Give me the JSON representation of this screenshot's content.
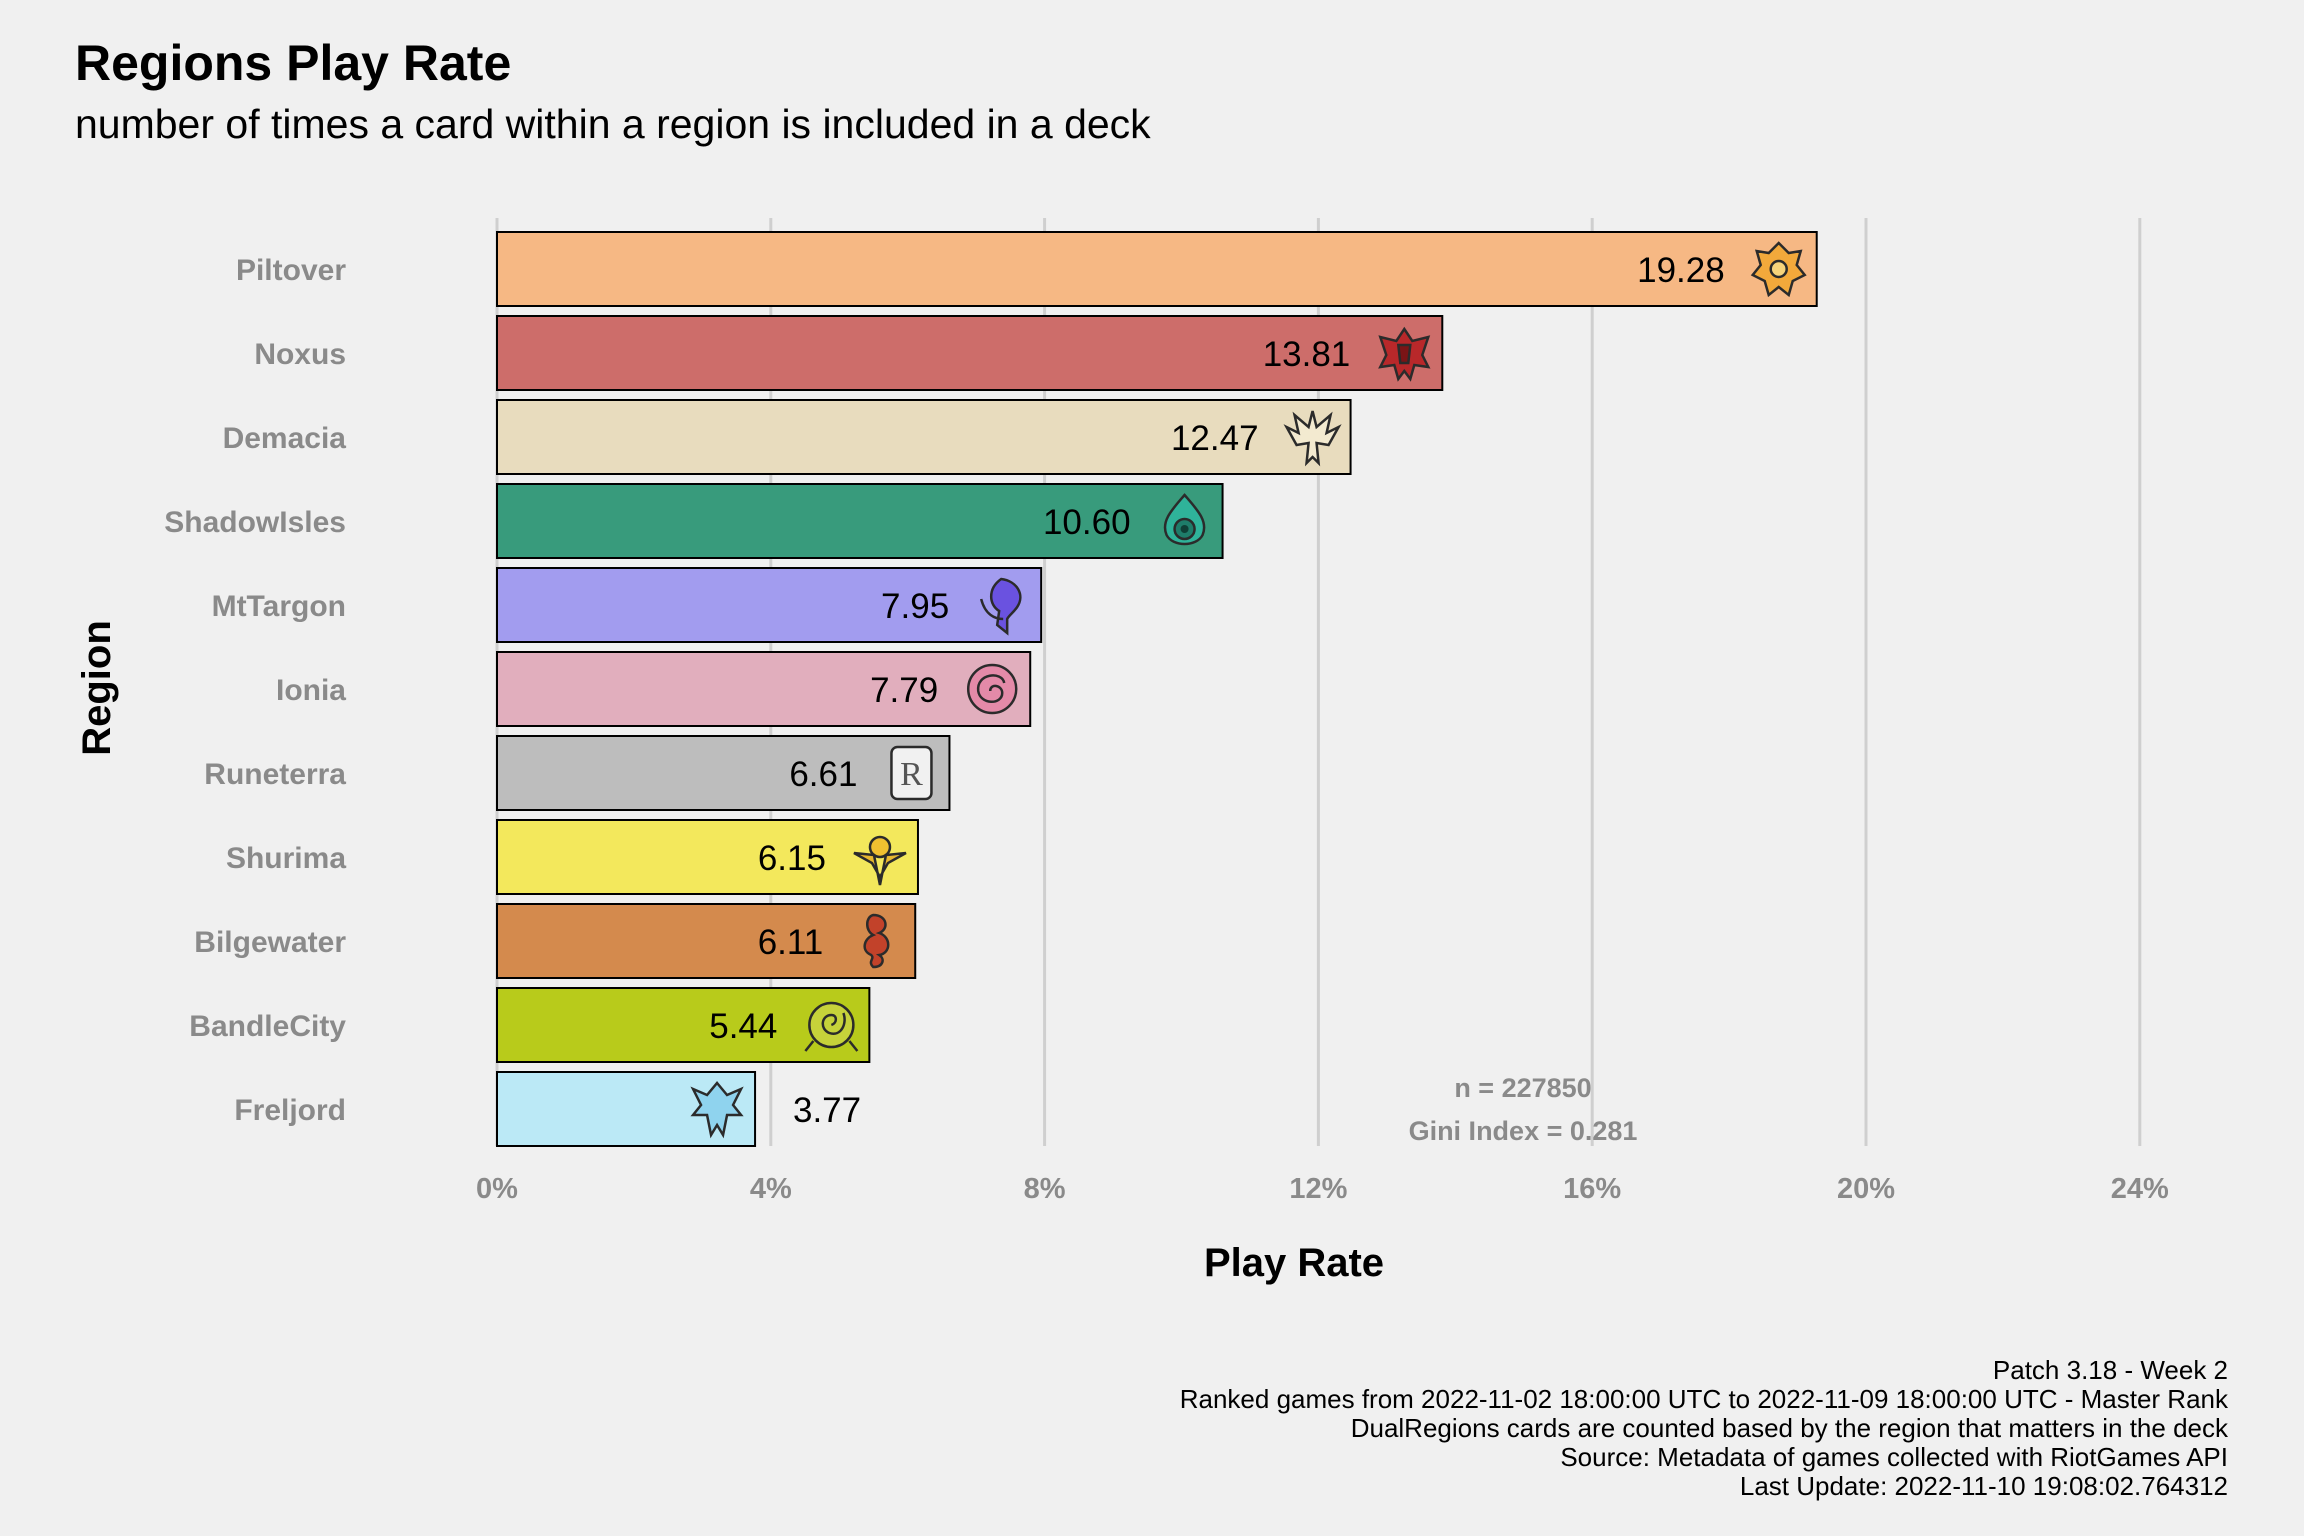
{
  "chart_data": {
    "type": "bar",
    "orientation": "horizontal",
    "title": "Regions Play Rate",
    "subtitle": "number of times a card within a region is included in a deck",
    "xlabel": "Play Rate",
    "ylabel": "Region",
    "xlim": [
      0,
      25
    ],
    "x_ticks": [
      "0%",
      "4%",
      "8%",
      "12%",
      "16%",
      "20%",
      "24%"
    ],
    "grid": "vertical",
    "categories": [
      "Piltover",
      "Noxus",
      "Demacia",
      "ShadowIsles",
      "MtTargon",
      "Ionia",
      "Runeterra",
      "Shurima",
      "Bilgewater",
      "BandleCity",
      "Freljord"
    ],
    "values": [
      19.28,
      13.81,
      12.47,
      10.6,
      7.95,
      7.79,
      6.61,
      6.15,
      6.11,
      5.44,
      3.77
    ],
    "value_labels": [
      "19.28",
      "13.81",
      "12.47",
      "10.60",
      "7.95",
      "7.79",
      "6.61",
      "6.15",
      "6.11",
      "5.44",
      "3.77"
    ],
    "colors": [
      "#f6b884",
      "#cd6d6a",
      "#e8dcbe",
      "#389b7c",
      "#a29cef",
      "#e1aebd",
      "#bdbdbd",
      "#f3e85c",
      "#d48a4d",
      "#b8cb1b",
      "#bbe9f6"
    ],
    "icons": [
      "piltover-emblem-icon",
      "noxus-emblem-icon",
      "demacia-emblem-icon",
      "shadowisles-emblem-icon",
      "mttargon-emblem-icon",
      "ionia-emblem-icon",
      "runeterra-emblem-icon",
      "shurima-emblem-icon",
      "bilgewater-emblem-icon",
      "bandlecity-emblem-icon",
      "freljord-emblem-icon"
    ],
    "annotation_n": "n = 227850",
    "annotation_gini": "Gini Index = 0.281"
  },
  "caption": [
    "Patch 3.18 - Week 2",
    "Ranked games from 2022-11-02 18:00:00 UTC to 2022-11-09 18:00:00 UTC - Master Rank",
    "DualRegions cards are counted based by the region that matters in the deck",
    "Source: Metadata of games collected with RiotGames API",
    "Last Update: 2022-11-10 19:08:02.764312"
  ]
}
